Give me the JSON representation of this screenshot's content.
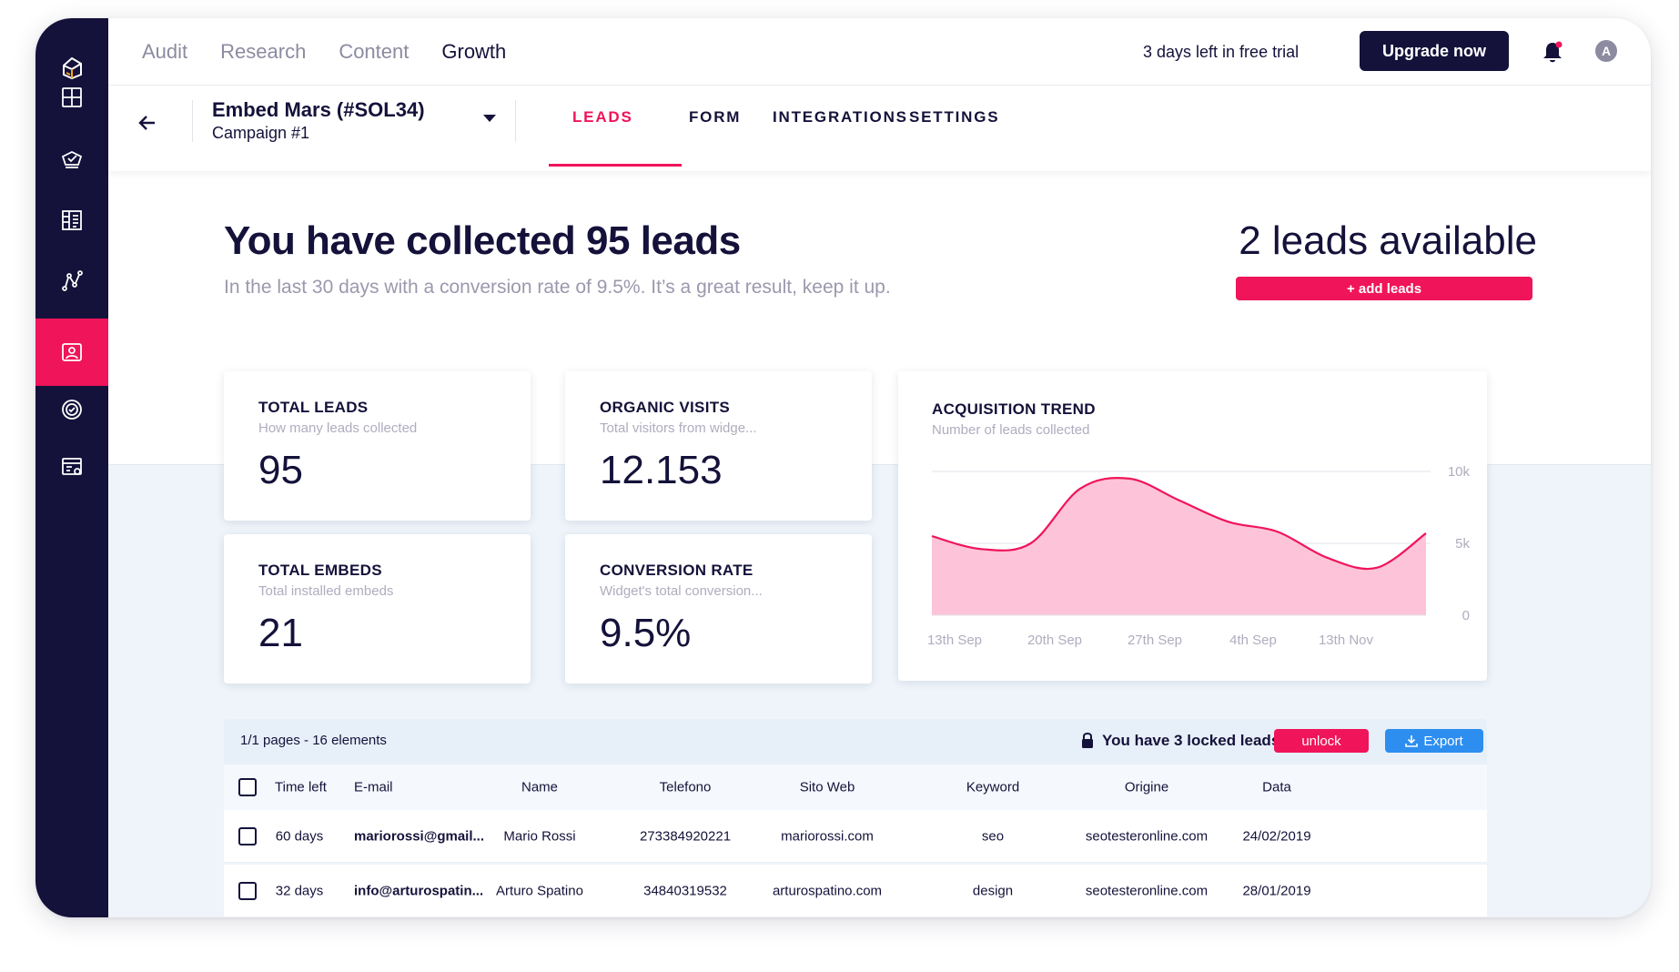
{
  "top_nav": {
    "items": [
      {
        "label": "Audit",
        "active": false
      },
      {
        "label": "Research",
        "active": false
      },
      {
        "label": "Content",
        "active": false
      },
      {
        "label": "Growth",
        "active": true
      }
    ],
    "trial_text": "3 days left in free trial",
    "upgrade_label": "Upgrade now",
    "avatar_initial": "A"
  },
  "sidebar": {
    "items": [
      "logo-icon",
      "dashboard-icon",
      "audit-icon",
      "content-icon",
      "analytics-icon",
      "leads-icon",
      "target-icon",
      "reports-icon"
    ],
    "active": "leads-icon"
  },
  "campaign": {
    "title": "Embed Mars (#SOL34)",
    "subtitle": "Campaign #1"
  },
  "tabs": [
    {
      "label": "LEADS",
      "active": true
    },
    {
      "label": "FORM",
      "active": false
    },
    {
      "label": "INTEGRATIONS",
      "active": false
    },
    {
      "label": "SETTINGS",
      "active": false
    }
  ],
  "hero": {
    "headline": "You have collected 95 leads",
    "subline": "In the last 30 days with a conversion rate of 9.5%. It’s a great result, keep it up.",
    "available": "2 leads available",
    "add_leads_label": "+ add leads"
  },
  "stats": [
    {
      "title": "TOTAL LEADS",
      "subtitle": "How many leads collected",
      "value": "95"
    },
    {
      "title": "ORGANIC VISITS",
      "subtitle": "Total visitors from widge...",
      "value": "12.153"
    },
    {
      "title": "TOTAL EMBEDS",
      "subtitle": "Total installed embeds",
      "value": "21"
    },
    {
      "title": "CONVERSION RATE",
      "subtitle": "Widget's total conversion...",
      "value": "9.5%"
    }
  ],
  "chart_data": {
    "type": "area",
    "title": "ACQUISITION TREND",
    "subtitle": "Number of leads collected",
    "categories": [
      "13th Sep",
      "20th Sep",
      "27th Sep",
      "4th Sep",
      "13th Nov"
    ],
    "ytick_labels": [
      "10k",
      "5k",
      "0"
    ],
    "yticks": [
      10000,
      5000,
      0
    ],
    "ylim": [
      0,
      10000
    ],
    "x": [
      0,
      0.1,
      0.2,
      0.3,
      0.4,
      0.5,
      0.6,
      0.7,
      0.8,
      0.9,
      1.0
    ],
    "values": [
      5500,
      4600,
      5000,
      8800,
      9500,
      8000,
      6500,
      5800,
      4000,
      3300,
      5700
    ],
    "grid": true,
    "legend": "none",
    "colors": {
      "line": "#f0145a",
      "fill": "#fdc3d8"
    }
  },
  "table": {
    "info": "1/1 pages - 16 elements",
    "locked_text": "You have 3 locked leads",
    "unlock_label": "unlock",
    "export_label": "Export",
    "columns": [
      "Time left",
      "E-mail",
      "Name",
      "Telefono",
      "Sito Web",
      "Keyword",
      "Origine",
      "Data"
    ],
    "rows": [
      [
        "60 days",
        "mariorossi@gmail...",
        "Mario Rossi",
        "273384920221",
        "mariorossi.com",
        "seo",
        "seotesteronline.com",
        "24/02/2019"
      ],
      [
        "32 days",
        "info@arturospatin...",
        "Arturo Spatino",
        "34840319532",
        "arturospatino.com",
        "design",
        "seotesteronline.com",
        "28/01/2019"
      ]
    ]
  },
  "colors": {
    "primary": "#14123a",
    "accent": "#f0145a",
    "export": "#2d8ef0",
    "muted": "#9a99ad"
  }
}
